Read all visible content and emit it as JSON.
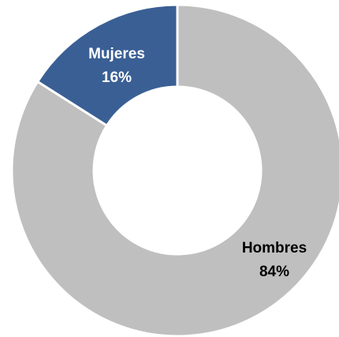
{
  "chart_data": {
    "type": "pie",
    "donut": true,
    "title": "",
    "legend": "none",
    "slices": [
      {
        "label": "Mujeres",
        "value": 16,
        "value_label": "16%",
        "color": "#3A5F94",
        "label_color": "#FFFFFF"
      },
      {
        "label": "Hombres",
        "value": 84,
        "value_label": "84%",
        "color": "#BFBFBF",
        "label_color": "#000000"
      }
    ]
  }
}
